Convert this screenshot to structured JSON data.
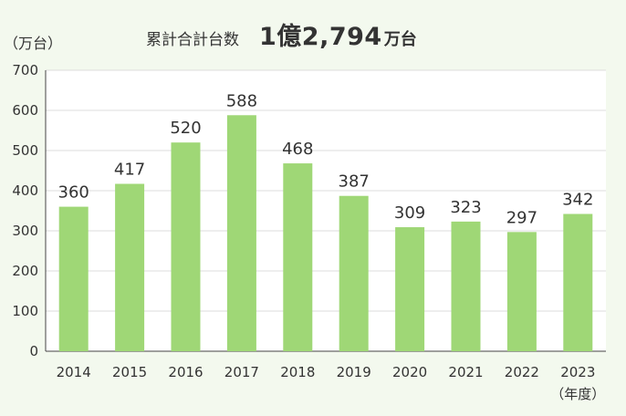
{
  "header": {
    "total_label": "累計合計台数",
    "total_value": "1億2,794",
    "total_unit": "万台"
  },
  "chart_data": {
    "type": "bar",
    "title": "",
    "ylabel": "（万台）",
    "xlabel": "（年度）",
    "categories": [
      "2014",
      "2015",
      "2016",
      "2017",
      "2018",
      "2019",
      "2020",
      "2021",
      "2022",
      "2023"
    ],
    "values": [
      360,
      417,
      520,
      588,
      468,
      387,
      309,
      323,
      297,
      342
    ],
    "ylim": [
      0,
      700
    ],
    "yticks": [
      0,
      100,
      200,
      300,
      400,
      500,
      600,
      700
    ],
    "grid": true,
    "bar_color": "#9fd776",
    "grid_color": "#dcdcdc"
  }
}
